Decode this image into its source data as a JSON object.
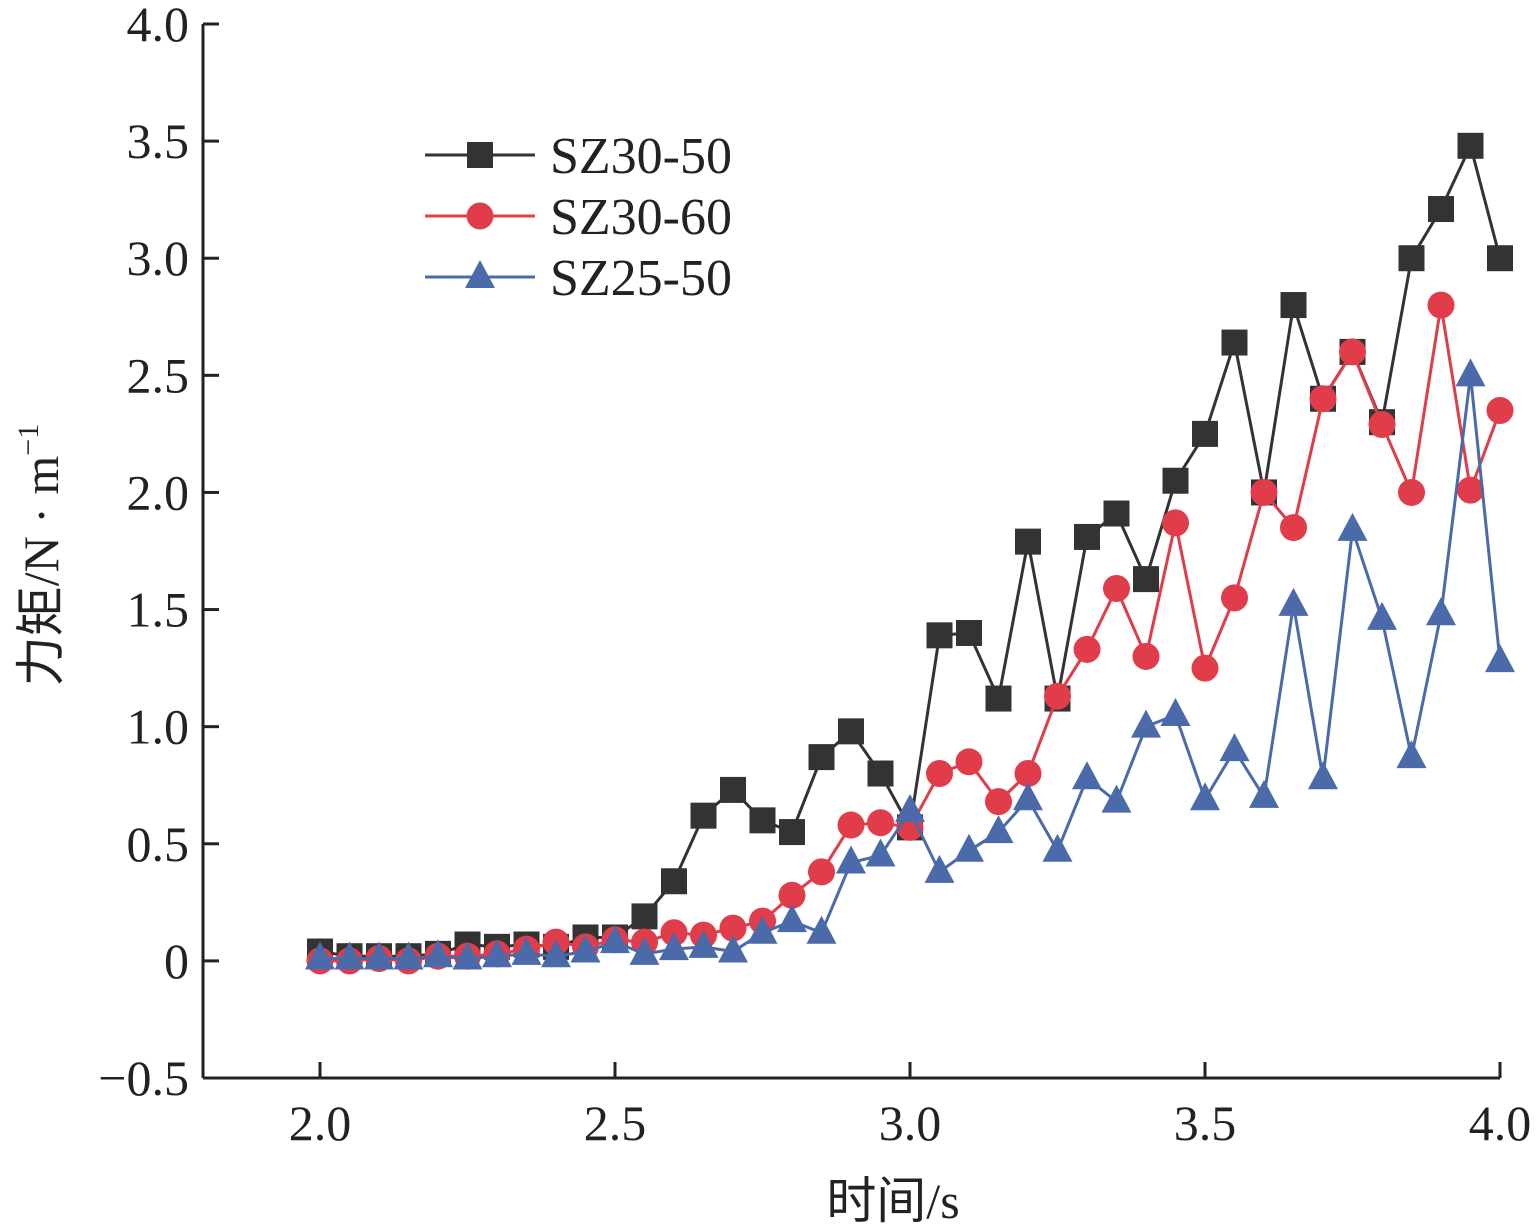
{
  "chart_data": {
    "type": "line",
    "xlabel": "时间/s",
    "ylabel": "力矩/N · m",
    "ylabel_superscript": "−1",
    "xlim": [
      1.8,
      4.0
    ],
    "ylim": [
      -0.5,
      4.0
    ],
    "xticks": [
      2.0,
      2.5,
      3.0,
      3.5,
      4.0
    ],
    "xtick_labels": [
      "2.0",
      "2.5",
      "3.0",
      "3.5",
      "4.0"
    ],
    "yticks": [
      -0.5,
      0,
      0.5,
      1.0,
      1.5,
      2.0,
      2.5,
      3.0,
      3.5,
      4.0
    ],
    "ytick_labels": [
      "−0.5",
      "0",
      "0.5",
      "1.0",
      "1.5",
      "2.0",
      "2.5",
      "3.0",
      "3.5",
      "4.0"
    ],
    "grid": false,
    "legend_position": "top-left",
    "x": [
      2.0,
      2.05,
      2.1,
      2.15,
      2.2,
      2.25,
      2.3,
      2.35,
      2.4,
      2.45,
      2.5,
      2.55,
      2.6,
      2.65,
      2.7,
      2.75,
      2.8,
      2.85,
      2.9,
      2.95,
      3.0,
      3.05,
      3.1,
      3.15,
      3.2,
      3.25,
      3.3,
      3.35,
      3.4,
      3.45,
      3.5,
      3.55,
      3.6,
      3.65,
      3.7,
      3.75,
      3.8,
      3.85,
      3.9,
      3.95,
      4.0
    ],
    "series": [
      {
        "name": "SZ30-50",
        "color": "#333333",
        "marker": "square",
        "values": [
          0.04,
          0.02,
          0.02,
          0.02,
          0.03,
          0.07,
          0.06,
          0.07,
          0.06,
          0.1,
          0.1,
          0.19,
          0.34,
          0.62,
          0.73,
          0.6,
          0.55,
          0.87,
          0.98,
          0.8,
          0.57,
          1.39,
          1.4,
          1.12,
          1.79,
          1.12,
          1.81,
          1.91,
          1.63,
          2.05,
          2.25,
          2.64,
          2.0,
          2.8,
          2.4,
          2.6,
          2.3,
          3.0,
          3.21,
          3.48,
          3.0
        ]
      },
      {
        "name": "SZ30-60",
        "color": "#e03c4a",
        "marker": "circle",
        "values": [
          0.0,
          0.0,
          0.01,
          0.0,
          0.02,
          0.02,
          0.03,
          0.05,
          0.08,
          0.06,
          0.09,
          0.08,
          0.12,
          0.11,
          0.14,
          0.17,
          0.28,
          0.38,
          0.58,
          0.59,
          0.57,
          0.8,
          0.85,
          0.68,
          0.8,
          1.13,
          1.33,
          1.59,
          1.3,
          1.87,
          1.25,
          1.55,
          2.0,
          1.85,
          2.4,
          2.6,
          2.29,
          2.0,
          2.8,
          2.01,
          2.35
        ]
      },
      {
        "name": "SZ25-50",
        "color": "#4a6aaa",
        "marker": "triangle",
        "values": [
          0.01,
          0.01,
          0.01,
          0.01,
          0.02,
          0.01,
          0.02,
          0.03,
          0.02,
          0.04,
          0.08,
          0.03,
          0.05,
          0.06,
          0.04,
          0.12,
          0.17,
          0.12,
          0.42,
          0.45,
          0.64,
          0.38,
          0.47,
          0.55,
          0.69,
          0.47,
          0.78,
          0.68,
          1.0,
          1.05,
          0.69,
          0.9,
          0.7,
          1.52,
          0.78,
          1.84,
          1.46,
          0.87,
          1.48,
          2.5,
          1.28
        ]
      }
    ]
  }
}
